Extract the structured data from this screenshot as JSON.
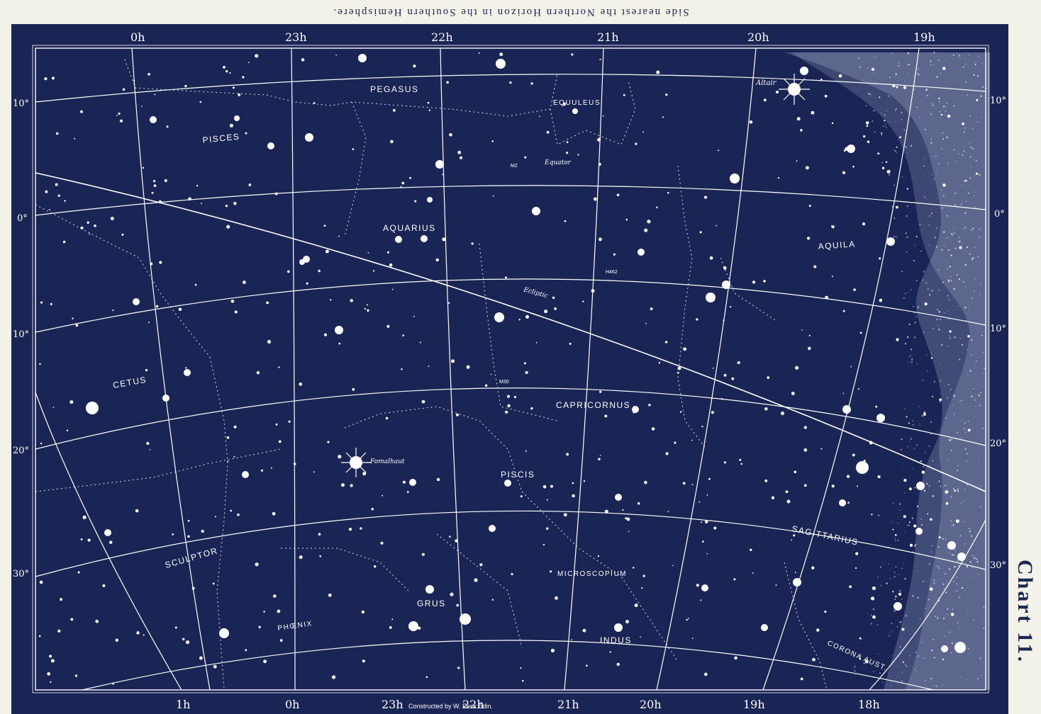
{
  "header": {
    "caption": "Side nearest the Northern Horizon in the Southern Hemisphere."
  },
  "title": "Chart 11.",
  "credit": "Constructed by W. Peck Edin.",
  "top_ra_labels": [
    "0h",
    "23h",
    "22h",
    "21h",
    "20h",
    "19h"
  ],
  "bottom_ra_labels": [
    "1h",
    "0h",
    "23h",
    "22h",
    "21h",
    "20h",
    "19h",
    "18h"
  ],
  "left_dec_labels": [
    "10°",
    "0°",
    "10°",
    "20°",
    "30°"
  ],
  "right_dec_labels": [
    "10°",
    "0°",
    "10°",
    "20°",
    "30°"
  ],
  "constellations": [
    "PEGASUS",
    "EQUULEUS",
    "PISCES",
    "AQUARIUS",
    "AQUILA",
    "CETUS",
    "CAPRICORNUS",
    "PISCIS",
    "SCULPTOR",
    "SAGITTARIUS",
    "MICROSCOPIUM",
    "GRUS",
    "PHŒNIX",
    "INDUS",
    "CORONA AUST."
  ],
  "named_stars": [
    "Altair",
    "Fomalhaut"
  ],
  "annotations": [
    "Equator",
    "Ecliptic",
    "M2",
    "M30",
    "H462"
  ],
  "colors": {
    "plate": "#1a2556",
    "ink": "#ffffff",
    "paper": "#f3f1e8"
  }
}
